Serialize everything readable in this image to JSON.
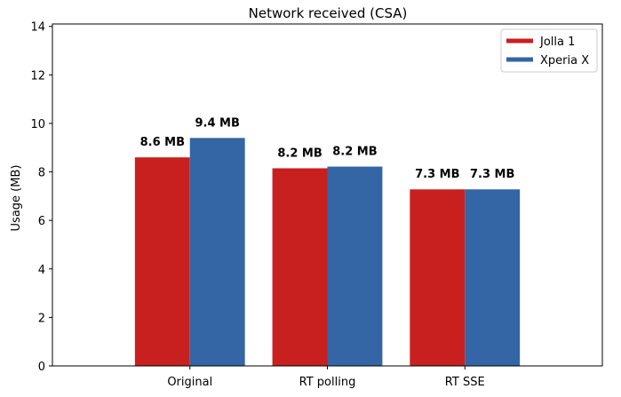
{
  "chart_data": {
    "type": "bar",
    "title": "Network received (CSA)",
    "xlabel": "",
    "ylabel": "Usage (MB)",
    "categories": [
      "Original",
      "RT polling",
      "RT SSE"
    ],
    "ylim": [
      0,
      14.1
    ],
    "yticks": [
      0,
      2,
      4,
      6,
      8,
      10,
      12,
      14
    ],
    "legend_position": "top-right",
    "grid": false,
    "series": [
      {
        "name": "Jolla 1",
        "color": "#c8201f",
        "values": [
          8.6,
          8.15,
          7.28
        ],
        "data_labels": [
          "8.6 MB",
          "8.2 MB",
          "7.3 MB"
        ]
      },
      {
        "name": "Xperia X",
        "color": "#3465a4",
        "values": [
          9.4,
          8.22,
          7.28
        ],
        "data_labels": [
          "9.4 MB",
          "8.2 MB",
          "7.3 MB"
        ]
      }
    ]
  }
}
